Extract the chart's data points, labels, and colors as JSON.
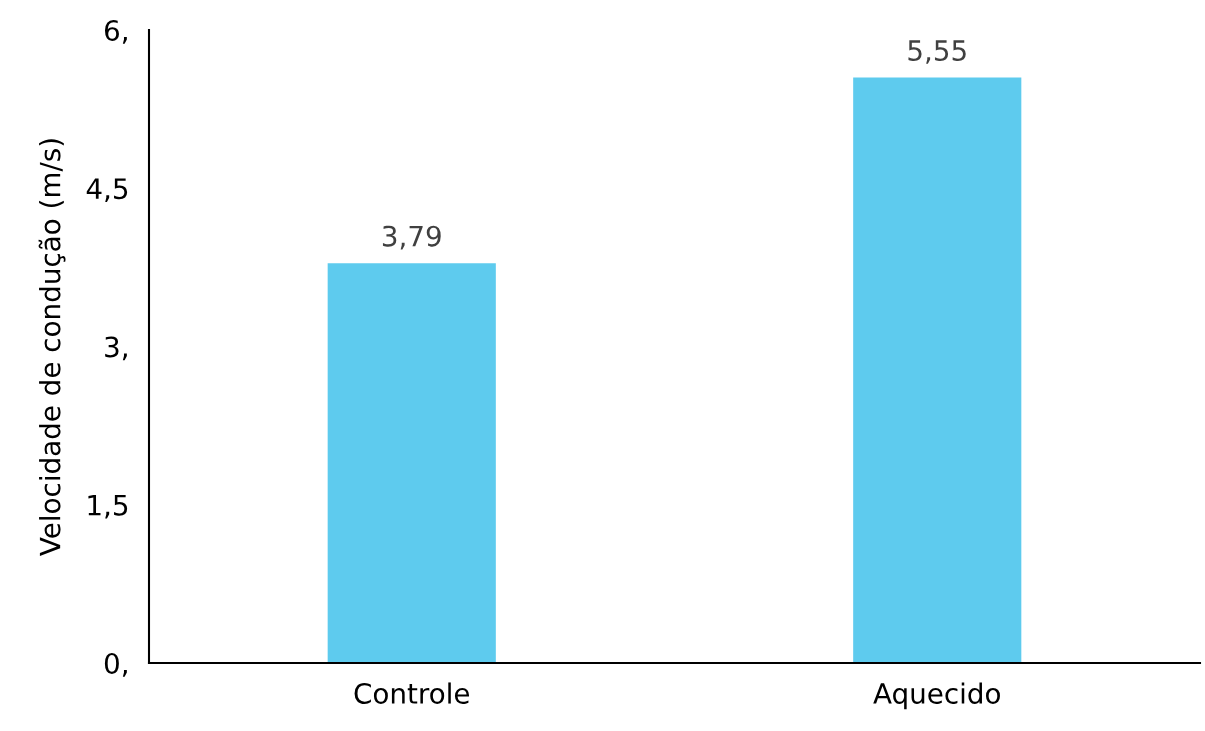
{
  "chart_data": {
    "type": "bar",
    "ylabel": "Velocidade de condução (m/s)",
    "categories": [
      "Controle",
      "Aquecido"
    ],
    "values": [
      3.79,
      5.55
    ],
    "value_labels": [
      "3,79",
      "5,55"
    ],
    "color": "#5ecbee",
    "ylim": [
      0,
      6
    ],
    "yticks": [
      {
        "value": 0,
        "label": "0,"
      },
      {
        "value": 1.5,
        "label": "1,5"
      },
      {
        "value": 3,
        "label": "3,"
      },
      {
        "value": 4.5,
        "label": "4,5"
      },
      {
        "value": 6,
        "label": "6,"
      }
    ],
    "grid": false,
    "legend": false
  }
}
